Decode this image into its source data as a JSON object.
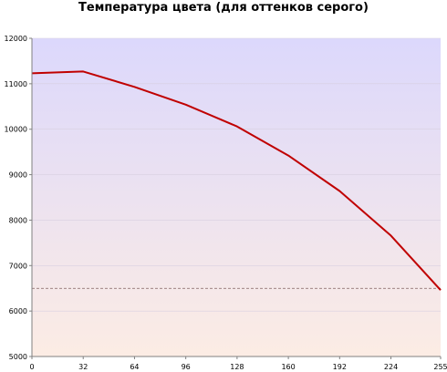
{
  "chart_data": {
    "type": "line",
    "title": "Температура цвета (для оттенков серого)",
    "xlabel": "",
    "ylabel": "",
    "x": [
      0,
      32,
      64,
      96,
      128,
      160,
      192,
      224,
      255
    ],
    "series": [
      {
        "values": [
          11230,
          11270,
          10930,
          10540,
          10060,
          9420,
          8640,
          7660,
          6460
        ],
        "color": "#c00000"
      }
    ],
    "reference_line": {
      "y": 6500,
      "style": "dashed",
      "color": "#806060"
    },
    "xlim": [
      0,
      255
    ],
    "ylim": [
      5000,
      12000
    ],
    "x_ticks": [
      "0",
      "32",
      "64",
      "96",
      "128",
      "160",
      "192",
      "224",
      "255"
    ],
    "y_ticks": [
      "5000",
      "6000",
      "7000",
      "8000",
      "9000",
      "10000",
      "11000",
      "12000"
    ],
    "x_tick_values": [
      0,
      32,
      64,
      96,
      128,
      160,
      192,
      224,
      255
    ],
    "y_tick_values": [
      5000,
      6000,
      7000,
      8000,
      9000,
      10000,
      11000,
      12000
    ],
    "grid": true,
    "legend": "none",
    "background_gradient": {
      "top": "#dcd8fc",
      "bottom": "#fcece4"
    }
  }
}
